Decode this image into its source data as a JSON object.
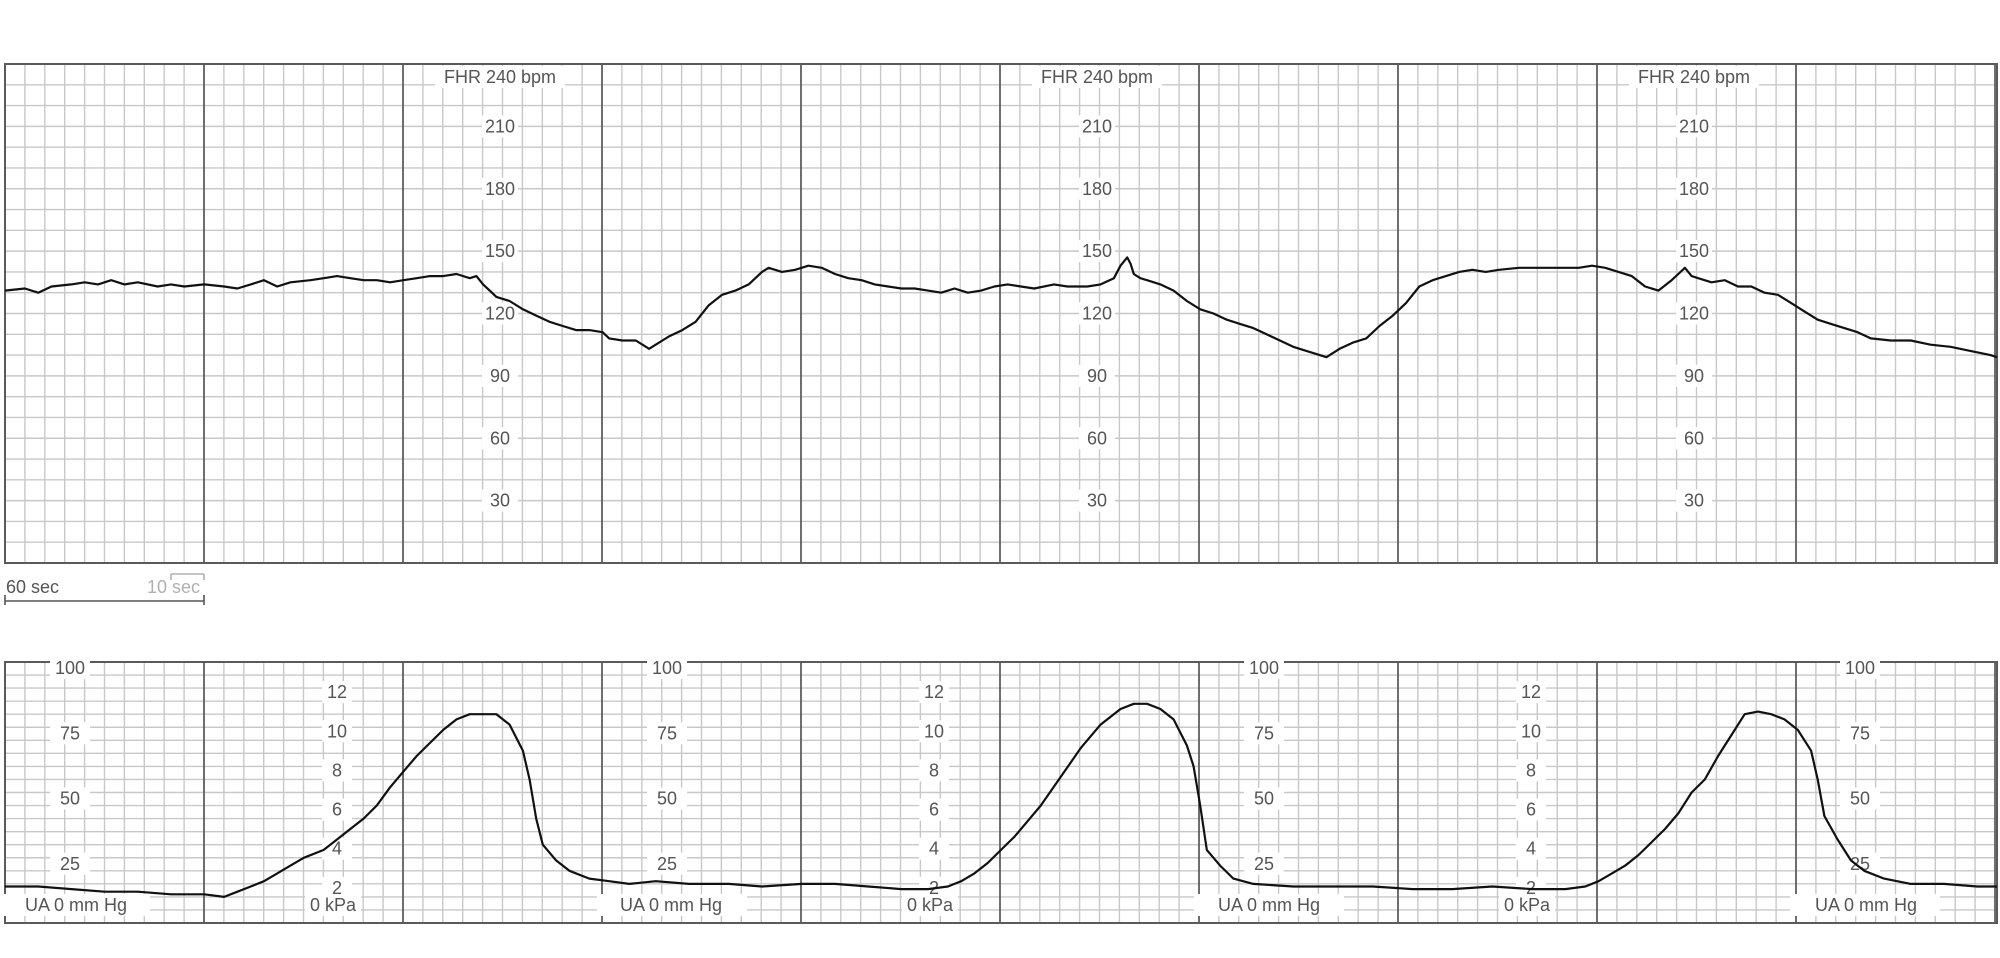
{
  "chart_data": [
    {
      "type": "line",
      "name": "fhr",
      "header_label": "FHR 240 bpm",
      "y_tick_labels": [
        "210",
        "180",
        "150",
        "120",
        "90",
        "60",
        "30"
      ],
      "ylim": [
        0,
        240
      ],
      "xlim_sec": [
        0,
        600
      ],
      "grid": true,
      "series": [
        {
          "points": [
            [
              0,
              131
            ],
            [
              6,
              132
            ],
            [
              10,
              130
            ],
            [
              14,
              133
            ],
            [
              20,
              134
            ],
            [
              24,
              135
            ],
            [
              28,
              134
            ],
            [
              32,
              136
            ],
            [
              36,
              134
            ],
            [
              40,
              135
            ],
            [
              46,
              133
            ],
            [
              50,
              134
            ],
            [
              54,
              133
            ],
            [
              60,
              134
            ],
            [
              66,
              133
            ],
            [
              70,
              132
            ],
            [
              74,
              134
            ],
            [
              78,
              136
            ],
            [
              82,
              133
            ],
            [
              86,
              135
            ],
            [
              92,
              136
            ],
            [
              96,
              137
            ],
            [
              100,
              138
            ],
            [
              104,
              137
            ],
            [
              108,
              136
            ],
            [
              112,
              136
            ],
            [
              116,
              135
            ],
            [
              120,
              136
            ],
            [
              124,
              137
            ],
            [
              128,
              138
            ],
            [
              132,
              138
            ],
            [
              136,
              139
            ],
            [
              140,
              137
            ],
            [
              142,
              138
            ],
            [
              144,
              134
            ],
            [
              146,
              131
            ],
            [
              148,
              128
            ],
            [
              152,
              126
            ],
            [
              156,
              122
            ],
            [
              160,
              119
            ],
            [
              164,
              116
            ],
            [
              168,
              114
            ],
            [
              172,
              112
            ],
            [
              176,
              112
            ],
            [
              180,
              111
            ],
            [
              182,
              108
            ],
            [
              186,
              107
            ],
            [
              190,
              107
            ],
            [
              194,
              103
            ],
            [
              196,
              105
            ],
            [
              198,
              107
            ],
            [
              200,
              109
            ],
            [
              204,
              112
            ],
            [
              208,
              116
            ],
            [
              212,
              124
            ],
            [
              216,
              129
            ],
            [
              220,
              131
            ],
            [
              224,
              134
            ],
            [
              228,
              140
            ],
            [
              230,
              142
            ],
            [
              234,
              140
            ],
            [
              238,
              141
            ],
            [
              242,
              143
            ],
            [
              246,
              142
            ],
            [
              250,
              139
            ],
            [
              254,
              137
            ],
            [
              258,
              136
            ],
            [
              262,
              134
            ],
            [
              266,
              133
            ],
            [
              270,
              132
            ],
            [
              274,
              132
            ],
            [
              278,
              131
            ],
            [
              282,
              130
            ],
            [
              286,
              132
            ],
            [
              290,
              130
            ],
            [
              294,
              131
            ],
            [
              298,
              133
            ],
            [
              302,
              134
            ],
            [
              306,
              133
            ],
            [
              310,
              132
            ],
            [
              316,
              134
            ],
            [
              320,
              133
            ],
            [
              326,
              133
            ],
            [
              330,
              134
            ],
            [
              334,
              137
            ],
            [
              336,
              143
            ],
            [
              338,
              147
            ],
            [
              339,
              144
            ],
            [
              340,
              139
            ],
            [
              342,
              137
            ],
            [
              344,
              136
            ],
            [
              348,
              134
            ],
            [
              352,
              131
            ],
            [
              356,
              126
            ],
            [
              360,
              122
            ],
            [
              364,
              120
            ],
            [
              368,
              117
            ],
            [
              372,
              115
            ],
            [
              376,
              113
            ],
            [
              380,
              110
            ],
            [
              384,
              107
            ],
            [
              388,
              104
            ],
            [
              392,
              102
            ],
            [
              396,
              100
            ],
            [
              398,
              99
            ],
            [
              402,
              103
            ],
            [
              406,
              106
            ],
            [
              410,
              108
            ],
            [
              414,
              114
            ],
            [
              418,
              119
            ],
            [
              422,
              125
            ],
            [
              426,
              133
            ],
            [
              430,
              136
            ],
            [
              434,
              138
            ],
            [
              438,
              140
            ],
            [
              442,
              141
            ],
            [
              446,
              140
            ],
            [
              450,
              141
            ],
            [
              456,
              142
            ],
            [
              462,
              142
            ],
            [
              468,
              142
            ],
            [
              474,
              142
            ],
            [
              478,
              143
            ],
            [
              482,
              142
            ],
            [
              486,
              140
            ],
            [
              490,
              138
            ],
            [
              494,
              133
            ],
            [
              498,
              131
            ],
            [
              502,
              136
            ],
            [
              504,
              139
            ],
            [
              506,
              142
            ],
            [
              508,
              138
            ],
            [
              510,
              137
            ],
            [
              514,
              135
            ],
            [
              518,
              136
            ],
            [
              522,
              133
            ],
            [
              526,
              133
            ],
            [
              530,
              130
            ],
            [
              534,
              129
            ],
            [
              538,
              125
            ],
            [
              542,
              121
            ],
            [
              546,
              117
            ],
            [
              550,
              115
            ],
            [
              554,
              113
            ],
            [
              558,
              111
            ],
            [
              562,
              108
            ],
            [
              568,
              107
            ],
            [
              574,
              107
            ],
            [
              580,
              105
            ],
            [
              586,
              104
            ],
            [
              592,
              102
            ],
            [
              598,
              100
            ],
            [
              600,
              99
            ]
          ]
        }
      ]
    },
    {
      "type": "line",
      "name": "ua",
      "y_tick_labels_mmhg": [
        "100",
        "75",
        "50",
        "25"
      ],
      "y_tick_labels_kpa": [
        "12",
        "10",
        "8",
        "6",
        "4",
        "2"
      ],
      "bottom_label_ua": "UA  0  mm Hg",
      "bottom_label_kpa": "0 kPa",
      "ylim_mmhg": [
        0,
        100
      ],
      "xlim_sec": [
        0,
        600
      ],
      "grid": true,
      "series": [
        {
          "points": [
            [
              0,
              14
            ],
            [
              10,
              14
            ],
            [
              20,
              13
            ],
            [
              30,
              12
            ],
            [
              40,
              12
            ],
            [
              50,
              11
            ],
            [
              60,
              11
            ],
            [
              66,
              10
            ],
            [
              70,
              12
            ],
            [
              74,
              14
            ],
            [
              78,
              16
            ],
            [
              82,
              19
            ],
            [
              86,
              22
            ],
            [
              90,
              25
            ],
            [
              96,
              28
            ],
            [
              100,
              32
            ],
            [
              104,
              36
            ],
            [
              108,
              40
            ],
            [
              112,
              45
            ],
            [
              116,
              52
            ],
            [
              120,
              58
            ],
            [
              124,
              64
            ],
            [
              128,
              69
            ],
            [
              132,
              74
            ],
            [
              136,
              78
            ],
            [
              140,
              80
            ],
            [
              144,
              80
            ],
            [
              148,
              80
            ],
            [
              152,
              76
            ],
            [
              156,
              66
            ],
            [
              158,
              55
            ],
            [
              160,
              40
            ],
            [
              162,
              30
            ],
            [
              166,
              24
            ],
            [
              170,
              20
            ],
            [
              176,
              17
            ],
            [
              182,
              16
            ],
            [
              188,
              15
            ],
            [
              196,
              16
            ],
            [
              206,
              15
            ],
            [
              218,
              15
            ],
            [
              228,
              14
            ],
            [
              240,
              15
            ],
            [
              250,
              15
            ],
            [
              260,
              14
            ],
            [
              270,
              13
            ],
            [
              278,
              13
            ],
            [
              284,
              14
            ],
            [
              288,
              16
            ],
            [
              292,
              19
            ],
            [
              296,
              23
            ],
            [
              300,
              28
            ],
            [
              304,
              33
            ],
            [
              308,
              39
            ],
            [
              312,
              45
            ],
            [
              318,
              56
            ],
            [
              324,
              67
            ],
            [
              330,
              76
            ],
            [
              336,
              82
            ],
            [
              340,
              84
            ],
            [
              344,
              84
            ],
            [
              348,
              82
            ],
            [
              352,
              78
            ],
            [
              356,
              68
            ],
            [
              358,
              60
            ],
            [
              360,
              45
            ],
            [
              362,
              28
            ],
            [
              366,
              22
            ],
            [
              370,
              17
            ],
            [
              376,
              15
            ],
            [
              388,
              14
            ],
            [
              400,
              14
            ],
            [
              412,
              14
            ],
            [
              424,
              13
            ],
            [
              436,
              13
            ],
            [
              448,
              14
            ],
            [
              460,
              13
            ],
            [
              470,
              13
            ],
            [
              476,
              14
            ],
            [
              480,
              16
            ],
            [
              484,
              19
            ],
            [
              488,
              22
            ],
            [
              492,
              26
            ],
            [
              496,
              31
            ],
            [
              500,
              36
            ],
            [
              504,
              42
            ],
            [
              508,
              50
            ],
            [
              512,
              55
            ],
            [
              516,
              64
            ],
            [
              520,
              72
            ],
            [
              524,
              80
            ],
            [
              528,
              81
            ],
            [
              532,
              80
            ],
            [
              536,
              78
            ],
            [
              540,
              74
            ],
            [
              544,
              66
            ],
            [
              546,
              55
            ],
            [
              548,
              41
            ],
            [
              552,
              32
            ],
            [
              556,
              24
            ],
            [
              560,
              20
            ],
            [
              566,
              17
            ],
            [
              574,
              15
            ],
            [
              584,
              15
            ],
            [
              594,
              14
            ],
            [
              600,
              14
            ]
          ]
        }
      ]
    }
  ],
  "scale_bar": {
    "label_60": "60 sec",
    "label_10": "10 sec"
  }
}
